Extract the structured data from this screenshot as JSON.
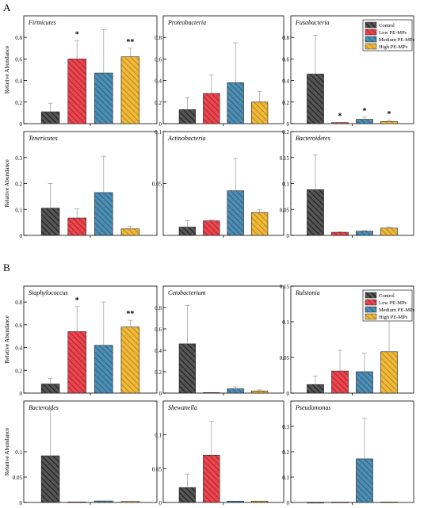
{
  "figure": {
    "panel_labels": [
      "A",
      "B"
    ],
    "ylabel": "Relative Abundance"
  },
  "legend": {
    "entries": [
      "Control",
      "Low PE-MPs",
      "Medium PE-MPs",
      "High PE-MPs"
    ],
    "colors": [
      "#555555",
      "#e8474f",
      "#4f8eb3",
      "#f0b93a"
    ]
  },
  "chart_data": [
    {
      "group": "A",
      "type": "bar",
      "title": "Firmicutes",
      "ylabel": "Relative Abundance",
      "categories": [
        "Control",
        "Low PE-MPs",
        "Medium PE-MPs",
        "High PE-MPs"
      ],
      "values": [
        0.11,
        0.6,
        0.47,
        0.62
      ],
      "errors": [
        0.08,
        0.17,
        0.4,
        0.08
      ],
      "significance": [
        "",
        "*",
        "",
        "**"
      ],
      "ylim": [
        0,
        1.0
      ],
      "yticks": [
        0,
        0.2,
        0.4,
        0.6,
        0.8
      ],
      "legend": false
    },
    {
      "group": "A",
      "type": "bar",
      "title": "Proteobacteria",
      "ylabel": "",
      "categories": [
        "Control",
        "Low PE-MPs",
        "Medium PE-MPs",
        "High PE-MPs"
      ],
      "values": [
        0.13,
        0.28,
        0.38,
        0.2
      ],
      "errors": [
        0.11,
        0.17,
        0.37,
        0.1
      ],
      "significance": [
        "",
        "",
        "",
        ""
      ],
      "ylim": [
        0,
        1.0
      ],
      "yticks": [
        0,
        0.2,
        0.4,
        0.6,
        0.8
      ],
      "legend": false
    },
    {
      "group": "A",
      "type": "bar",
      "title": "Fusobacteria",
      "ylabel": "",
      "categories": [
        "Control",
        "Low PE-MPs",
        "Medium PE-MPs",
        "High PE-MPs"
      ],
      "values": [
        0.46,
        0.01,
        0.04,
        0.02
      ],
      "errors": [
        0.36,
        0.0,
        0.02,
        0.01
      ],
      "significance": [
        "",
        "*",
        "*",
        "*"
      ],
      "ylim": [
        0,
        1.0
      ],
      "yticks": [
        0,
        0.2,
        0.4,
        0.6,
        0.8
      ],
      "legend": true
    },
    {
      "group": "A",
      "type": "bar",
      "title": "Tenericutes",
      "ylabel": "Relative Abundance",
      "categories": [
        "Control",
        "Low PE-MPs",
        "Medium PE-MPs",
        "High PE-MPs"
      ],
      "values": [
        0.105,
        0.067,
        0.165,
        0.025
      ],
      "errors": [
        0.095,
        0.035,
        0.14,
        0.01
      ],
      "significance": [
        "",
        "",
        "",
        ""
      ],
      "ylim": [
        0,
        0.4
      ],
      "yticks": [
        0,
        0.1,
        0.2,
        0.3
      ],
      "legend": false
    },
    {
      "group": "A",
      "type": "bar",
      "title": "Actinobacteria",
      "ylabel": "",
      "categories": [
        "Control",
        "Low PE-MPs",
        "Medium PE-MPs",
        "High PE-MPs"
      ],
      "values": [
        0.008,
        0.014,
        0.043,
        0.022
      ],
      "errors": [
        0.006,
        0.001,
        0.031,
        0.003
      ],
      "significance": [
        "",
        "",
        "",
        ""
      ],
      "ylim": [
        0,
        0.1
      ],
      "yticks": [
        0.05,
        0.1
      ],
      "legend": false
    },
    {
      "group": "A",
      "type": "bar",
      "title": "Bacteroidetes",
      "ylabel": "",
      "categories": [
        "Control",
        "Low PE-MPs",
        "Medium PE-MPs",
        "High PE-MPs"
      ],
      "values": [
        0.088,
        0.006,
        0.008,
        0.014
      ],
      "errors": [
        0.067,
        0.001,
        0.001,
        0.002
      ],
      "significance": [
        "",
        "",
        "",
        ""
      ],
      "ylim": [
        0,
        0.2
      ],
      "yticks": [
        0,
        0.05,
        0.1,
        0.15,
        0.2
      ],
      "legend": false
    },
    {
      "group": "B",
      "type": "bar",
      "title": "Staphylococcus",
      "ylabel": "Relative Abundance",
      "categories": [
        "Control",
        "Low PE-MPs",
        "Medium PE-MPs",
        "High PE-MPs"
      ],
      "values": [
        0.08,
        0.54,
        0.42,
        0.58
      ],
      "errors": [
        0.05,
        0.22,
        0.38,
        0.06
      ],
      "significance": [
        "",
        "*",
        "",
        "**"
      ],
      "ylim": [
        0,
        0.94
      ],
      "yticks": [
        0,
        0.2,
        0.4,
        0.6,
        0.8
      ],
      "legend": false
    },
    {
      "group": "B",
      "type": "bar",
      "title": "Cetobacterium",
      "ylabel": "",
      "categories": [
        "Control",
        "Low PE-MPs",
        "Medium PE-MPs",
        "High PE-MPs"
      ],
      "values": [
        0.46,
        0.005,
        0.04,
        0.02
      ],
      "errors": [
        0.36,
        0.0,
        0.02,
        0.01
      ],
      "significance": [
        "",
        "",
        "",
        ""
      ],
      "ylim": [
        0,
        1.0
      ],
      "yticks": [
        0,
        0.2,
        0.4,
        0.6,
        0.8
      ],
      "legend": false
    },
    {
      "group": "B",
      "type": "bar",
      "title": "Ralstonia",
      "ylabel": "",
      "categories": [
        "Control",
        "Low PE-MPs",
        "Medium PE-MPs",
        "High PE-MPs"
      ],
      "values": [
        0.012,
        0.031,
        0.03,
        0.058
      ],
      "errors": [
        0.012,
        0.029,
        0.026,
        0.05
      ],
      "significance": [
        "",
        "",
        "",
        ""
      ],
      "ylim": [
        0,
        0.15
      ],
      "yticks": [
        0,
        0.05,
        0.1,
        0.15
      ],
      "legend": true
    },
    {
      "group": "B",
      "type": "bar",
      "title": "Bacteroides",
      "ylabel": "Relative Abundance",
      "categories": [
        "Control",
        "Low PE-MPs",
        "Medium PE-MPs",
        "High PE-MPs"
      ],
      "values": [
        0.092,
        0.001,
        0.003,
        0.002
      ],
      "errors": [
        0.09,
        0.0,
        0.0,
        0.0
      ],
      "significance": [
        "",
        "",
        "",
        ""
      ],
      "ylim": [
        0,
        0.2
      ],
      "yticks": [
        0,
        0.05,
        0.1
      ],
      "legend": false
    },
    {
      "group": "B",
      "type": "bar",
      "title": "Shewanella",
      "ylabel": "",
      "categories": [
        "Control",
        "Low PE-MPs",
        "Medium PE-MPs",
        "High PE-MPs"
      ],
      "values": [
        0.022,
        0.07,
        0.002,
        0.002
      ],
      "errors": [
        0.02,
        0.05,
        0.0,
        0.0
      ],
      "significance": [
        "",
        "",
        "",
        ""
      ],
      "ylim": [
        0,
        0.15
      ],
      "yticks": [
        0,
        0.05,
        0.1
      ],
      "legend": false
    },
    {
      "group": "B",
      "type": "bar",
      "title": "Pseudomonas",
      "ylabel": "",
      "categories": [
        "Control",
        "Low PE-MPs",
        "Medium PE-MPs",
        "High PE-MPs"
      ],
      "values": [
        0.0,
        0.001,
        0.172,
        0.002
      ],
      "errors": [
        0.0,
        0.0,
        0.16,
        0.0
      ],
      "significance": [
        "",
        "",
        "",
        ""
      ],
      "ylim": [
        0,
        0.4
      ],
      "yticks": [
        0,
        0.1,
        0.2,
        0.3
      ],
      "legend": false
    }
  ]
}
